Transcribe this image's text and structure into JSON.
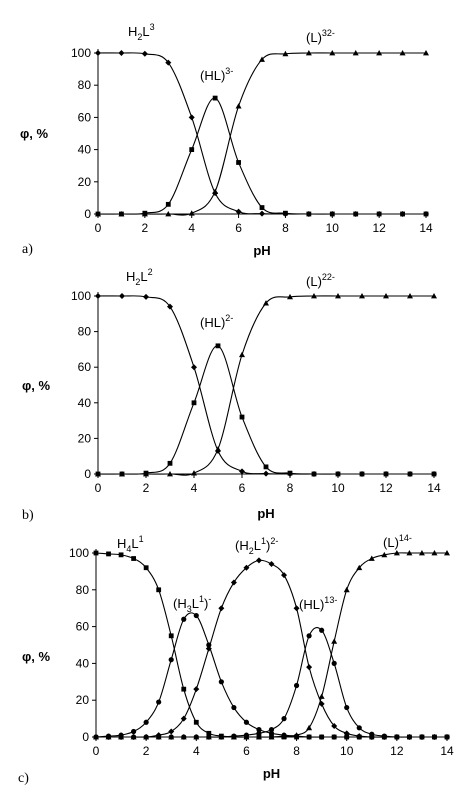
{
  "chart_data": [
    {
      "type": "line",
      "panel_label": "a)",
      "xlabel": "pH",
      "ylabel": "φ, %",
      "xlim": [
        0,
        14
      ],
      "ylim": [
        0,
        100
      ],
      "xticks": [
        0,
        2,
        4,
        6,
        8,
        10,
        12,
        14
      ],
      "yticks": [
        0,
        20,
        40,
        60,
        80,
        100
      ],
      "x": [
        0,
        1,
        2,
        3,
        4,
        5,
        6,
        7,
        8,
        9,
        10,
        11,
        12,
        13,
        14
      ],
      "series": [
        {
          "name": "H2L3",
          "label_main": "H",
          "label_sub": "2",
          "label_main2": "L",
          "label_sup": "3",
          "marker": "diamond",
          "values": [
            100,
            100,
            99.5,
            94,
            60,
            13,
            1.5,
            0.2,
            0,
            0,
            0,
            0,
            0,
            0,
            0
          ]
        },
        {
          "name": "(HL3)-",
          "label_main": "(HL",
          "label_sup": "3",
          "label_main2": ")",
          "label_sup2": "-",
          "marker": "square",
          "values": [
            0,
            0,
            0.5,
            6,
            40,
            72,
            32,
            4,
            0.5,
            0,
            0,
            0,
            0,
            0,
            0
          ]
        },
        {
          "name": "(L3)2-",
          "label_main": "(L",
          "label_sup": "3",
          "label_main2": ")",
          "label_sup2": "2-",
          "marker": "triangle",
          "values": [
            0,
            0,
            0,
            0,
            0.5,
            14,
            67,
            96,
            99.5,
            100,
            100,
            100,
            100,
            100,
            100
          ]
        }
      ]
    },
    {
      "type": "line",
      "panel_label": "b)",
      "xlabel": "pH",
      "ylabel": "φ, %",
      "xlim": [
        0,
        14
      ],
      "ylim": [
        0,
        100
      ],
      "xticks": [
        0,
        2,
        4,
        6,
        8,
        10,
        12,
        14
      ],
      "yticks": [
        0,
        20,
        40,
        60,
        80,
        100
      ],
      "x": [
        0,
        1,
        2,
        3,
        4,
        5,
        6,
        7,
        8,
        9,
        10,
        11,
        12,
        13,
        14
      ],
      "series": [
        {
          "name": "H2L2",
          "label_main": "H",
          "label_sub": "2",
          "label_main2": "L",
          "label_sup": "2",
          "marker": "diamond",
          "values": [
            100,
            100,
            99.5,
            94,
            60,
            13,
            1.5,
            0.2,
            0,
            0,
            0,
            0,
            0,
            0,
            0
          ]
        },
        {
          "name": "(HL2)-",
          "label_main": "(HL",
          "label_sup": "2",
          "label_main2": ")",
          "label_sup2": "-",
          "marker": "square",
          "values": [
            0,
            0,
            0.5,
            6,
            40,
            72,
            32,
            4,
            0.5,
            0,
            0,
            0,
            0,
            0,
            0
          ]
        },
        {
          "name": "(L2)2-",
          "label_main": "(L",
          "label_sup": "2",
          "label_main2": ")",
          "label_sup2": "2-",
          "marker": "triangle",
          "values": [
            0,
            0,
            0,
            0,
            0.5,
            14,
            67,
            96,
            99.5,
            100,
            100,
            100,
            100,
            100,
            100
          ]
        }
      ]
    },
    {
      "type": "line",
      "panel_label": "c)",
      "xlabel": "pH",
      "ylabel": "φ, %",
      "xlim": [
        0,
        14
      ],
      "ylim": [
        0,
        100
      ],
      "xticks": [
        0,
        2,
        4,
        6,
        8,
        10,
        12,
        14
      ],
      "yticks": [
        0,
        20,
        40,
        60,
        80,
        100
      ],
      "x": [
        0,
        0.5,
        1,
        1.5,
        2,
        2.5,
        3,
        3.5,
        4,
        4.5,
        5,
        5.5,
        6,
        6.5,
        7,
        7.5,
        8,
        8.5,
        9,
        9.5,
        10,
        10.5,
        11,
        11.5,
        12,
        12.5,
        13,
        13.5,
        14
      ],
      "series": [
        {
          "name": "H4L1",
          "label_main": "H",
          "label_sub": "4",
          "label_main2": "L",
          "label_sup": "1",
          "marker": "square",
          "values": [
            100,
            99.5,
            99,
            97,
            92,
            80,
            55,
            26,
            8,
            2,
            0.5,
            0,
            0,
            0,
            0,
            0,
            0,
            0,
            0,
            0,
            0,
            0,
            0,
            0,
            0,
            0,
            0,
            0,
            0
          ]
        },
        {
          "name": "(H3L1)-",
          "label_main": "(H",
          "label_sub": "3",
          "label_main2": "L",
          "label_sup": "1",
          "label_main3": ")",
          "label_sup2": "-",
          "marker": "circle",
          "values": [
            0,
            0.5,
            1,
            3,
            8,
            19,
            42,
            64,
            66,
            50,
            30,
            16,
            8,
            4,
            2,
            1,
            0.5,
            0,
            0,
            0,
            0,
            0,
            0,
            0,
            0,
            0,
            0,
            0,
            0
          ]
        },
        {
          "name": "(H2L1)2-",
          "label_main": "(H",
          "label_sub": "2",
          "label_main2": "L",
          "label_sup": "1",
          "label_main3": ")",
          "label_sup2": "2-",
          "marker": "diamond",
          "values": [
            0,
            0,
            0,
            0,
            0,
            1,
            3,
            10,
            26,
            48,
            70,
            84,
            92,
            96,
            94,
            88,
            70,
            38,
            18,
            6,
            2,
            0.5,
            0,
            0,
            0,
            0,
            0,
            0,
            0
          ]
        },
        {
          "name": "(HL1)3-",
          "label_main": "(HL",
          "label_sup": "1",
          "label_main2": ")",
          "label_sup2": "3-",
          "marker": "circle",
          "values": [
            0,
            0,
            0,
            0,
            0,
            0,
            0,
            0,
            0,
            0,
            0,
            0.5,
            1,
            2,
            4,
            10,
            28,
            55,
            58,
            40,
            16,
            5,
            1.5,
            0.5,
            0,
            0,
            0,
            0,
            0
          ]
        },
        {
          "name": "(L1)4-",
          "label_main": "(L",
          "label_sup": "1",
          "label_main2": ")",
          "label_sup2": "4-",
          "marker": "triangle",
          "values": [
            0,
            0,
            0,
            0,
            0,
            0,
            0,
            0,
            0,
            0,
            0,
            0,
            0,
            0,
            0,
            0.5,
            1,
            5,
            22,
            52,
            80,
            92,
            97,
            99,
            100,
            100,
            100,
            100,
            100
          ]
        }
      ]
    }
  ]
}
